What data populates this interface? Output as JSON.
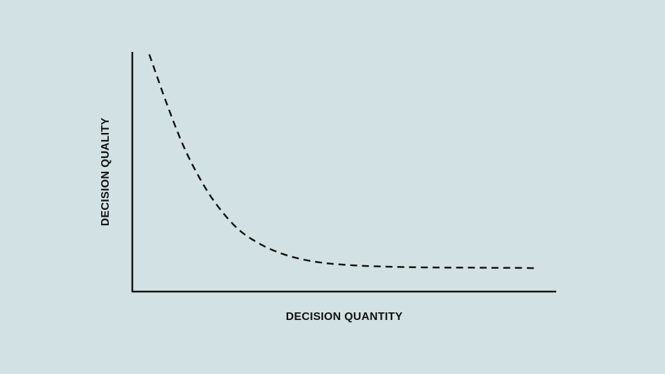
{
  "chart_data": {
    "type": "line",
    "title": "",
    "xlabel": "DECISION QUANTITY",
    "ylabel": "DECISION QUALITY",
    "xlim": [
      0,
      10
    ],
    "ylim": [
      0,
      10
    ],
    "grid": false,
    "legend": "none",
    "series": [
      {
        "line_style": "dashed",
        "color": "#111111",
        "x": [
          0.4,
          0.8,
          1.2,
          1.6,
          2.0,
          2.5,
          3.0,
          3.5,
          4.0,
          4.5,
          5.0,
          5.5,
          6.0,
          6.5,
          7.0,
          7.5,
          8.0,
          8.5,
          9.0,
          9.5
        ],
        "y": [
          9.9,
          7.9,
          6.1,
          4.7,
          3.6,
          2.6,
          2.0,
          1.6,
          1.35,
          1.2,
          1.12,
          1.07,
          1.04,
          1.02,
          1.01,
          1.0,
          1.0,
          0.99,
          0.99,
          0.98
        ]
      }
    ]
  },
  "colors": {
    "background": "#d2e1e3",
    "axis": "#111111",
    "curve": "#111111"
  }
}
